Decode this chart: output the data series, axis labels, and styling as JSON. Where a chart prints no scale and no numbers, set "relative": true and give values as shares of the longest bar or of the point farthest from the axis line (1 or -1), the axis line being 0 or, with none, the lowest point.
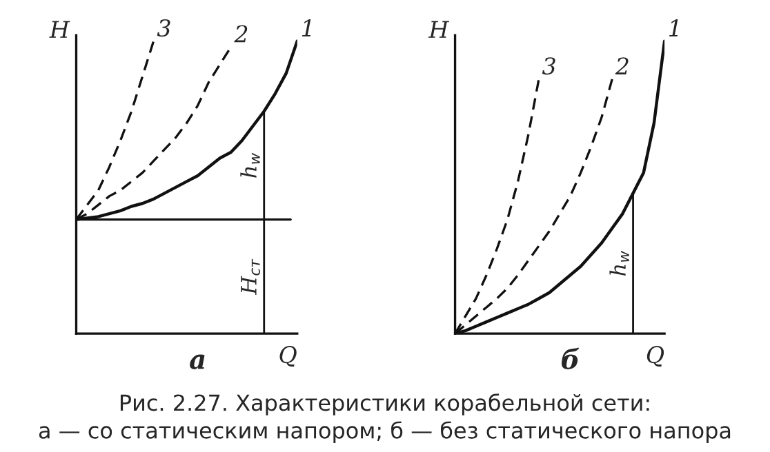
{
  "chart_data": [
    {
      "type": "line",
      "relative": true,
      "xlabel": "Q",
      "ylabel": "H",
      "categories": [
        null,
        null,
        null,
        null,
        null,
        null,
        null,
        null,
        null,
        null,
        null,
        null,
        null,
        null,
        null,
        null,
        null,
        null,
        null,
        null,
        null
      ],
      "series": [
        {
          "name": "1",
          "color": "#111111",
          "line_style": "solid",
          "values": [
            0.39,
            0.395,
            0.4,
            0.41,
            0.42,
            0.435,
            0.445,
            0.46,
            0.48,
            0.5,
            0.52,
            0.54,
            0.57,
            0.6,
            0.62,
            0.66,
            0.71,
            0.76,
            0.82,
            0.89,
            1.0
          ]
        },
        {
          "name": "2",
          "color": "#111111",
          "line_style": "dashed",
          "values": [
            0.39,
            0.41,
            0.44,
            0.47,
            0.49,
            0.52,
            0.55,
            0.59,
            0.63,
            0.67,
            0.72,
            0.78,
            0.86,
            0.92,
            0.98,
            null,
            null,
            null,
            null,
            null,
            null
          ]
        },
        {
          "name": "3",
          "color": "#111111",
          "line_style": "dashed",
          "values": [
            0.39,
            0.44,
            0.49,
            0.57,
            0.66,
            0.76,
            0.88,
            1.0,
            null,
            null,
            null,
            null,
            null,
            null,
            null,
            null,
            null,
            null,
            null,
            null,
            null
          ]
        }
      ],
      "ref_lines": [
        {
          "axis": "y",
          "value": 0.39
        }
      ],
      "annotations": [
        "а",
        "h$_{w}$",
        "H$_{ст}$"
      ]
    },
    {
      "type": "line",
      "relative": true,
      "xlabel": "Q",
      "ylabel": "H",
      "categories": [
        null,
        null,
        null,
        null,
        null,
        null,
        null,
        null,
        null,
        null,
        null,
        null,
        null,
        null,
        null,
        null,
        null,
        null,
        null,
        null,
        null
      ],
      "series": [
        {
          "name": "1",
          "color": "#111111",
          "line_style": "solid",
          "values": [
            0,
            0.01,
            0.025,
            0.04,
            0.055,
            0.07,
            0.085,
            0.1,
            0.12,
            0.14,
            0.17,
            0.2,
            0.23,
            0.27,
            0.31,
            0.36,
            0.41,
            0.48,
            0.55,
            0.72,
            1.0
          ]
        },
        {
          "name": "2",
          "color": "#111111",
          "line_style": "dashed",
          "values": [
            0,
            0.03,
            0.06,
            0.09,
            0.12,
            0.155,
            0.2,
            0.25,
            0.3,
            0.35,
            0.41,
            0.47,
            0.55,
            0.64,
            0.74,
            0.87,
            null,
            null,
            null,
            null,
            null
          ]
        },
        {
          "name": "3",
          "color": "#111111",
          "line_style": "dashed",
          "values": [
            0,
            0.06,
            0.12,
            0.2,
            0.29,
            0.39,
            0.52,
            0.68,
            0.87,
            null,
            null,
            null,
            null,
            null,
            null,
            null,
            null,
            null,
            null,
            null,
            null
          ]
        }
      ],
      "annotations": [
        "б",
        "h$_{w}$",
        "Рис. 2.27. Характеристики корабельной сети:\nа — со статическим напором; б — без статического напора"
      ]
    }
  ]
}
